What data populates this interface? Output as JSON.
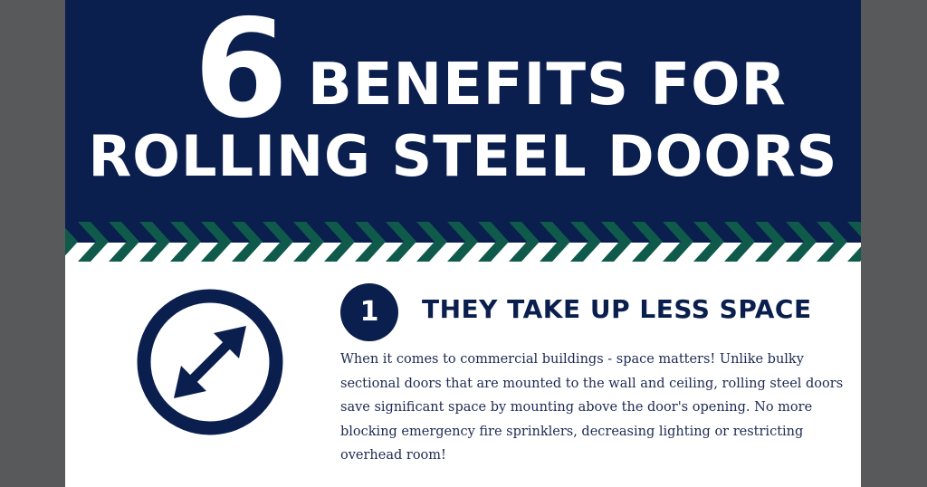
{
  "colors": {
    "navy": "#0a1f4e",
    "green": "#0f5a4a",
    "background": "#58595b"
  },
  "header": {
    "number": "6",
    "title_line1": "BENEFITS FOR",
    "title_line2": "ROLLING STEEL DOORS"
  },
  "benefit": {
    "number": "1",
    "icon": "diagonal-double-arrow-icon",
    "heading": "THEY TAKE UP LESS SPACE",
    "body": "When it comes to commercial buildings - space matters! Unlike bulky sectional doors that are mounted to the wall and ceiling, rolling steel doors save significant space by mounting above the door's opening. No more blocking emergency fire sprinklers, decreasing lighting or restricting overhead room!"
  }
}
